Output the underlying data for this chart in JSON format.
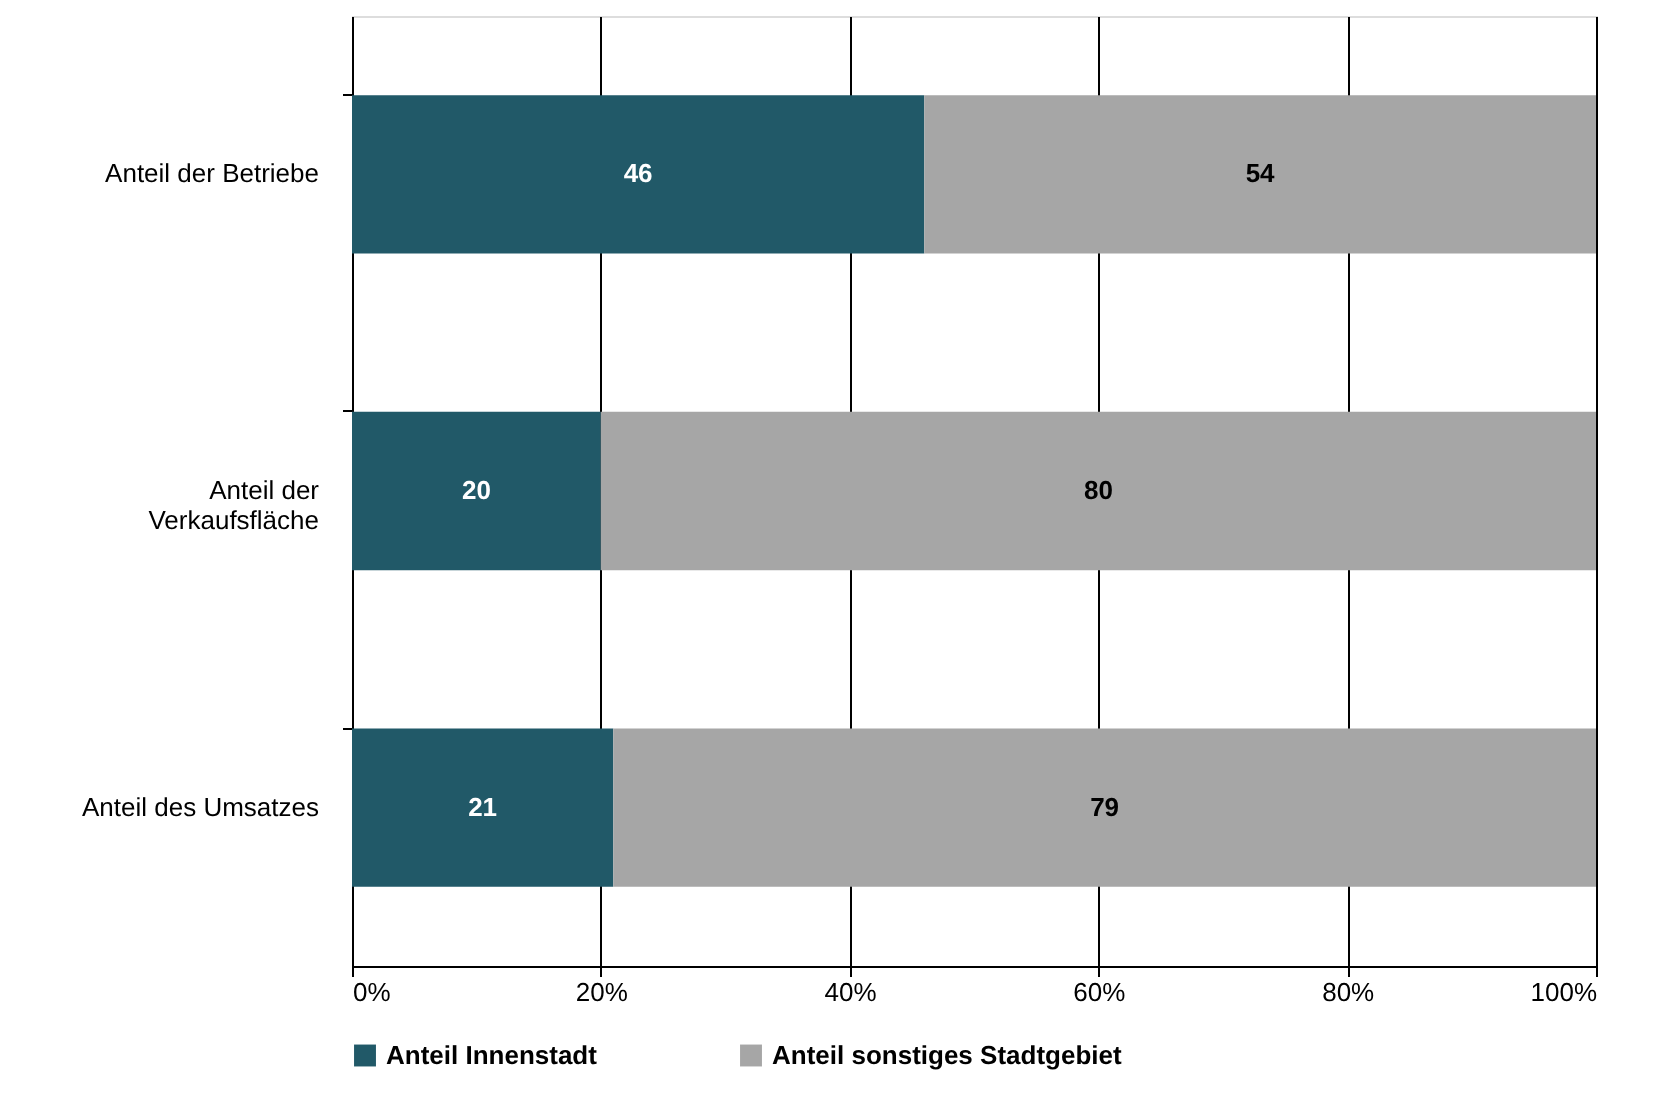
{
  "chart_data": {
    "type": "bar",
    "orientation": "horizontal",
    "stacked": true,
    "data_labels": true,
    "grid": "x",
    "legend": "bottom",
    "categories": [
      "Anteil der Betriebe",
      "Anteil der Verkaufsfläche",
      "Anteil des Umsatzes"
    ],
    "series": [
      {
        "name": "Anteil Innenstadt",
        "color": "#215968",
        "values": [
          46,
          20,
          21
        ]
      },
      {
        "name": "Anteil sonstiges Stadtgebiet",
        "color": "#a6a6a6",
        "values": [
          54,
          80,
          79
        ]
      }
    ],
    "xlim": [
      0,
      100
    ],
    "xticks": [
      {
        "value": 0,
        "label": "0%"
      },
      {
        "value": 20,
        "label": "20%"
      },
      {
        "value": 40,
        "label": "40%"
      },
      {
        "value": 60,
        "label": "60%"
      },
      {
        "value": 80,
        "label": "80%"
      },
      {
        "value": 100,
        "label": "100%"
      }
    ]
  }
}
